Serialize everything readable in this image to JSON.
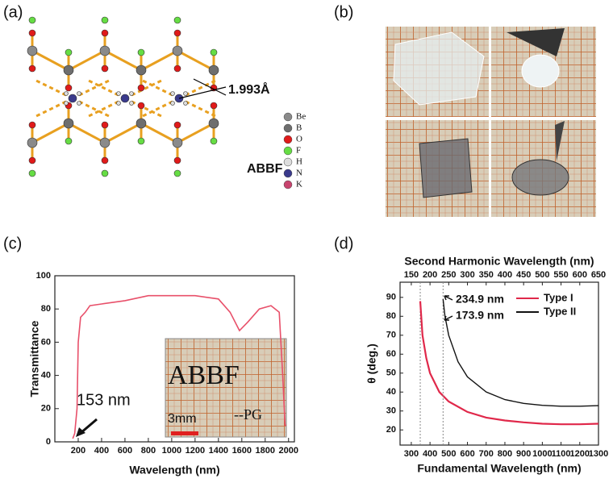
{
  "panel_labels": [
    "(a)",
    "(b)",
    "(c)",
    "(d)"
  ],
  "structure": {
    "bond_length": "1.993Å",
    "name": "ABBF",
    "legend": [
      {
        "label": "Be",
        "color": "#8a8a8a"
      },
      {
        "label": "B",
        "color": "#6e6e6e"
      },
      {
        "label": "O",
        "color": "#e01a1a"
      },
      {
        "label": "F",
        "color": "#66dd44"
      },
      {
        "label": "H",
        "color": "#dddddd"
      },
      {
        "label": "N",
        "color": "#3a3a8c"
      },
      {
        "label": "K",
        "color": "#c8446e"
      }
    ]
  },
  "chart_data": [
    {
      "type": "line",
      "xlabel": "Wavelength (nm)",
      "ylabel": "Transmittance",
      "color": "#e8506a",
      "annotations": [
        "153 nm"
      ],
      "inset_texts": [
        "ABBF",
        "3mm",
        "--PG"
      ],
      "x": [
        153,
        170,
        190,
        200,
        220,
        260,
        300,
        400,
        600,
        800,
        1000,
        1200,
        1400,
        1500,
        1580,
        1650,
        1750,
        1850,
        1920,
        1950,
        1970,
        1980
      ],
      "values": [
        2,
        5,
        20,
        60,
        75,
        78,
        82,
        83,
        85,
        88,
        88,
        88,
        86,
        78,
        67,
        72,
        80,
        82,
        78,
        40,
        10,
        10
      ],
      "xlim": [
        0,
        2050
      ],
      "xticks": [
        200,
        400,
        600,
        800,
        1000,
        1200,
        1400,
        1600,
        1800,
        2000
      ],
      "ylim": [
        0,
        100
      ],
      "yticks": [
        0,
        20,
        40,
        60,
        80,
        100
      ]
    },
    {
      "type": "line",
      "xlabel": "Fundamental Wavelength (nm)",
      "x2label": "Second Harmonic Wavelength (nm)",
      "ylabel": "θ (deg.)",
      "annotations": [
        {
          "text": "234.9 nm",
          "color": "#111111"
        },
        {
          "text": "173.9 nm",
          "color": "#e0284a"
        }
      ],
      "series": [
        {
          "name": "Type I",
          "color": "#e0284a",
          "x": [
            347.8,
            360,
            380,
            400,
            450,
            500,
            600,
            700,
            800,
            900,
            1000,
            1100,
            1200,
            1300
          ],
          "values": [
            88,
            70,
            58,
            50,
            40,
            35,
            29.5,
            26.5,
            25,
            24,
            23.3,
            23,
            23,
            23.3
          ]
        },
        {
          "name": "Type II",
          "color": "#111111",
          "x": [
            469.8,
            480,
            500,
            550,
            600,
            700,
            800,
            900,
            1000,
            1100,
            1200,
            1300
          ],
          "values": [
            89,
            80,
            70,
            56,
            48,
            40,
            36,
            34,
            33,
            32.5,
            32.5,
            32.8
          ]
        }
      ],
      "xlim": [
        240,
        1300
      ],
      "xticks": [
        300,
        400,
        500,
        600,
        700,
        800,
        900,
        1000,
        1100,
        1200,
        1300
      ],
      "x2lim": [
        120,
        650
      ],
      "x2ticks": [
        150,
        200,
        250,
        300,
        350,
        400,
        450,
        500,
        550,
        600,
        650
      ],
      "ylim": [
        12,
        98
      ],
      "yticks": [
        20,
        30,
        40,
        50,
        60,
        70,
        80,
        90
      ]
    }
  ]
}
